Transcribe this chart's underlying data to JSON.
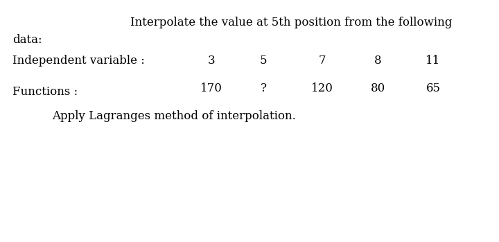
{
  "bg_color": "#ffffff",
  "title_line1": "Interpolate the value at 5th position from the following",
  "title_line2": "data:",
  "row1_label": "Independent variable :",
  "row1_values": [
    "3",
    "5",
    "7",
    "8",
    "11"
  ],
  "row2_label": "Functions :",
  "row2_values": [
    "170",
    "?",
    "120",
    "80",
    "65"
  ],
  "footer": "Apply Lagranges method of interpolation.",
  "font_family": "serif",
  "title_fontsize": 12,
  "label_fontsize": 12,
  "value_fontsize": 12,
  "footer_fontsize": 12
}
